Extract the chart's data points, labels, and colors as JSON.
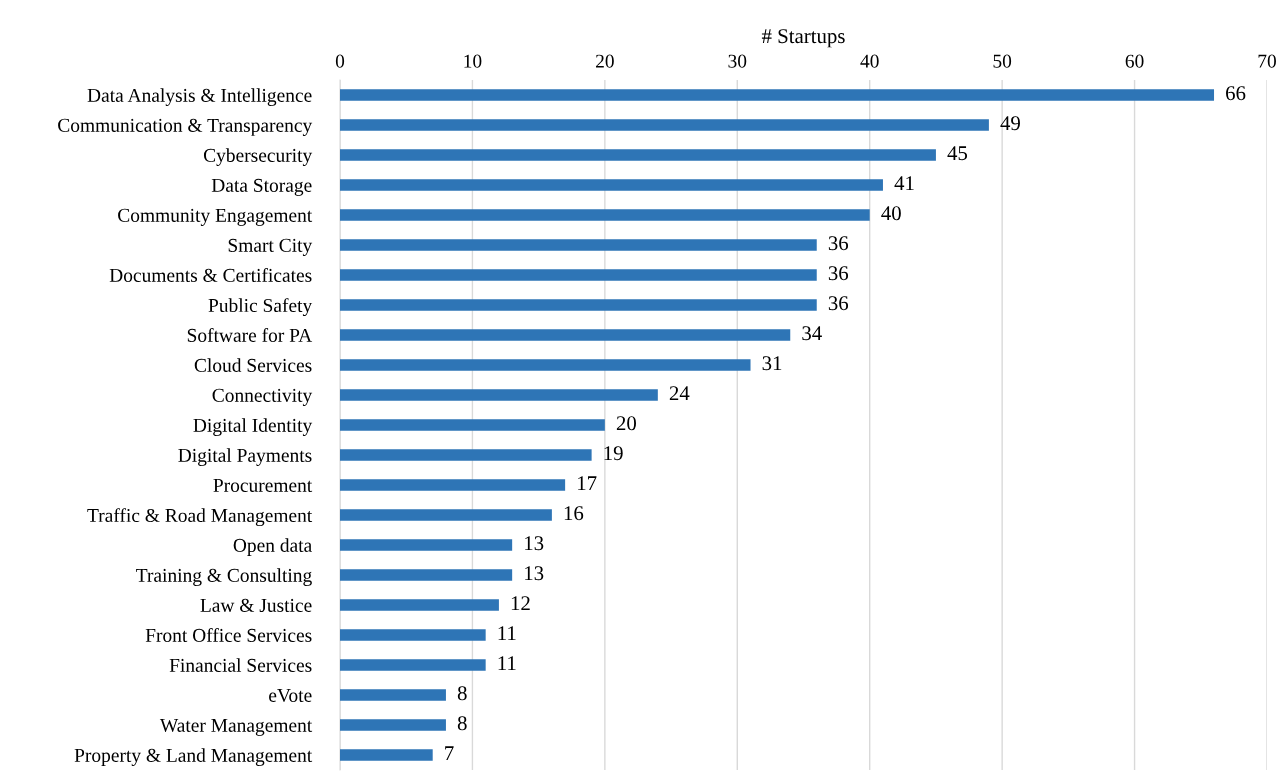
{
  "chart_data": {
    "type": "bar",
    "orientation": "horizontal",
    "xlabel": "# Startups",
    "categories": [
      "Data Analysis & Intelligence",
      "Communication & Transparency",
      "Cybersecurity",
      "Data Storage",
      "Community Engagement",
      "Smart City",
      "Documents & Certificates",
      "Public Safety",
      "Software for PA",
      "Cloud Services",
      "Connectivity",
      "Digital Identity",
      "Digital Payments",
      "Procurement",
      "Traffic & Road Management",
      "Open data",
      "Training & Consulting",
      "Law & Justice",
      "Front Office Services",
      "Financial Services",
      "eVote",
      "Water Management",
      "Property & Land Management"
    ],
    "values": [
      66,
      49,
      45,
      41,
      40,
      36,
      36,
      36,
      34,
      31,
      24,
      20,
      19,
      17,
      16,
      13,
      13,
      12,
      11,
      11,
      8,
      8,
      7
    ],
    "color": "#2e75b6",
    "xlim": [
      0,
      70
    ],
    "xticks": [
      0,
      10,
      20,
      30,
      40,
      50,
      60,
      70
    ],
    "grid": "x",
    "data_labels": true
  }
}
